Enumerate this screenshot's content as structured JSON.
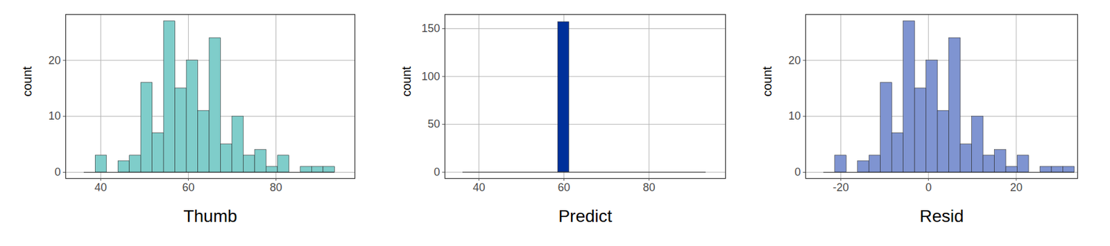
{
  "chart_data": [
    {
      "type": "histogram",
      "x_label": "Thumb",
      "y_label": "count",
      "color": "#7fcdca",
      "grid": true,
      "bins": [
        36.2,
        38.8,
        41.4,
        44.0,
        46.6,
        49.2,
        51.8,
        54.4,
        57.0,
        59.6,
        62.2,
        64.8,
        67.4,
        70.0,
        72.6,
        75.2,
        77.8,
        80.4,
        83.0,
        85.6,
        88.2,
        90.8,
        93.4
      ],
      "counts": [
        0,
        3,
        0,
        2,
        3,
        16,
        7,
        27,
        15,
        20,
        11,
        24,
        5,
        10,
        3,
        4,
        1,
        3,
        0,
        1,
        1,
        1
      ],
      "xlim": [
        32,
        98
      ],
      "xticks": [
        40,
        60,
        80
      ],
      "ylim": [
        -1.1,
        28.2
      ],
      "yticks": [
        0,
        10,
        20
      ]
    },
    {
      "type": "histogram",
      "x_label": "Predict",
      "y_label": "count",
      "color": "#00309a",
      "grid": true,
      "bins": [
        36.2,
        58.6,
        61.2,
        93.4
      ],
      "counts": [
        0,
        157,
        0
      ],
      "xlim": [
        32,
        98
      ],
      "xticks": [
        40,
        60,
        80
      ],
      "ylim": [
        -6.6,
        164.8
      ],
      "yticks": [
        0,
        50,
        100,
        150
      ]
    },
    {
      "type": "histogram",
      "x_label": "Resid",
      "y_label": "count",
      "color": "#7f94d1",
      "grid": true,
      "bins": [
        -23.9,
        -21.3,
        -18.7,
        -16.1,
        -13.5,
        -10.9,
        -8.3,
        -5.7,
        -3.1,
        -0.5,
        2.1,
        4.7,
        7.3,
        9.9,
        12.5,
        15.1,
        17.7,
        20.3,
        22.9,
        25.5,
        28.1,
        30.7,
        33.3
      ],
      "counts": [
        0,
        3,
        0,
        2,
        3,
        16,
        7,
        27,
        15,
        20,
        11,
        24,
        5,
        10,
        3,
        4,
        1,
        3,
        0,
        1,
        1,
        1
      ],
      "xlim": [
        -28,
        34
      ],
      "xticks": [
        -20,
        0,
        20
      ],
      "ylim": [
        -1.1,
        28.2
      ],
      "yticks": [
        0,
        10,
        20
      ]
    }
  ]
}
